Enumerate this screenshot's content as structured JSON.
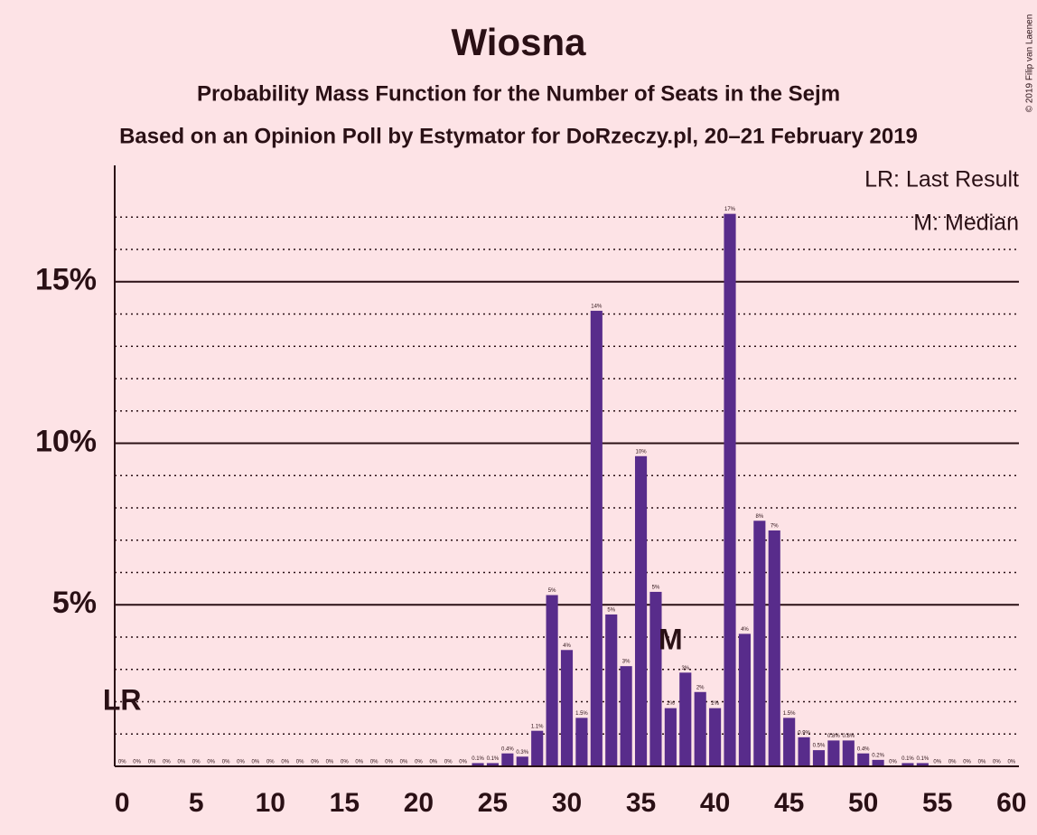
{
  "chart_data": {
    "type": "bar",
    "title": "Wiosna",
    "subtitle": "Probability Mass Function for the Number of Seats in the Sejm",
    "subtitle2": "Based on an Opinion Poll by Estymator for DoRzeczy.pl, 20–21 February 2019",
    "copyright": "© 2019 Filip van Laenen",
    "x": [
      0,
      1,
      2,
      3,
      4,
      5,
      6,
      7,
      8,
      9,
      10,
      11,
      12,
      13,
      14,
      15,
      16,
      17,
      18,
      19,
      20,
      21,
      22,
      23,
      24,
      25,
      26,
      27,
      28,
      29,
      30,
      31,
      32,
      33,
      34,
      35,
      36,
      37,
      38,
      39,
      40,
      41,
      42,
      43,
      44,
      45,
      46,
      47,
      48,
      49,
      50,
      51,
      52,
      53,
      54,
      55,
      56,
      57,
      58,
      59,
      60
    ],
    "values": [
      0,
      0,
      0,
      0,
      0,
      0,
      0,
      0,
      0,
      0,
      0,
      0,
      0,
      0,
      0,
      0,
      0,
      0,
      0,
      0,
      0,
      0,
      0,
      0,
      0.1,
      0.1,
      0.4,
      0.3,
      1.1,
      5.3,
      3.6,
      1.5,
      14.1,
      4.7,
      3.1,
      9.6,
      5.4,
      1.8,
      2.9,
      2.3,
      1.8,
      17.1,
      4.1,
      7.6,
      7.3,
      1.5,
      0.9,
      0.5,
      0.8,
      0.8,
      0.4,
      0.2,
      0,
      0.1,
      0.1,
      0,
      0,
      0,
      0,
      0,
      0
    ],
    "value_labels": [
      "0%",
      "0%",
      "0%",
      "0%",
      "0%",
      "0%",
      "0%",
      "0%",
      "0%",
      "0%",
      "0%",
      "0%",
      "0%",
      "0%",
      "0%",
      "0%",
      "0%",
      "0%",
      "0%",
      "0%",
      "0%",
      "0%",
      "0%",
      "0%",
      "0.1%",
      "0.1%",
      "0.4%",
      "0.3%",
      "1.1%",
      "5%",
      "4%",
      "1.5%",
      "14%",
      "5%",
      "3%",
      "10%",
      "5%",
      "2%",
      "3%",
      "2%",
      "2%",
      "17%",
      "4%",
      "8%",
      "7%",
      "1.5%",
      "0.9%",
      "0.5%",
      "0.8%",
      "0.8%",
      "0.4%",
      "0.2%",
      "0%",
      "0.1%",
      "0.1%",
      "0%",
      "0%",
      "0%",
      "0%",
      "0%",
      "0%"
    ],
    "color": "#582c8b",
    "xlim": [
      -0.5,
      60.5
    ],
    "xticks": [
      0,
      5,
      10,
      15,
      20,
      25,
      30,
      35,
      40,
      45,
      50,
      55,
      60
    ],
    "ylim": [
      0,
      18.6
    ],
    "yticks": [
      {
        "value": 5,
        "label": "5%"
      },
      {
        "value": 10,
        "label": "10%"
      },
      {
        "value": 15,
        "label": "15%"
      }
    ],
    "minor_yticks": [
      1,
      2,
      3,
      4,
      6,
      7,
      8,
      9,
      11,
      12,
      13,
      14,
      16,
      17
    ],
    "annotations": [
      {
        "x": 0,
        "text": "LR"
      },
      {
        "x": 37,
        "text": "M"
      }
    ],
    "legend": [
      "LR: Last Result",
      "M: Median"
    ]
  }
}
